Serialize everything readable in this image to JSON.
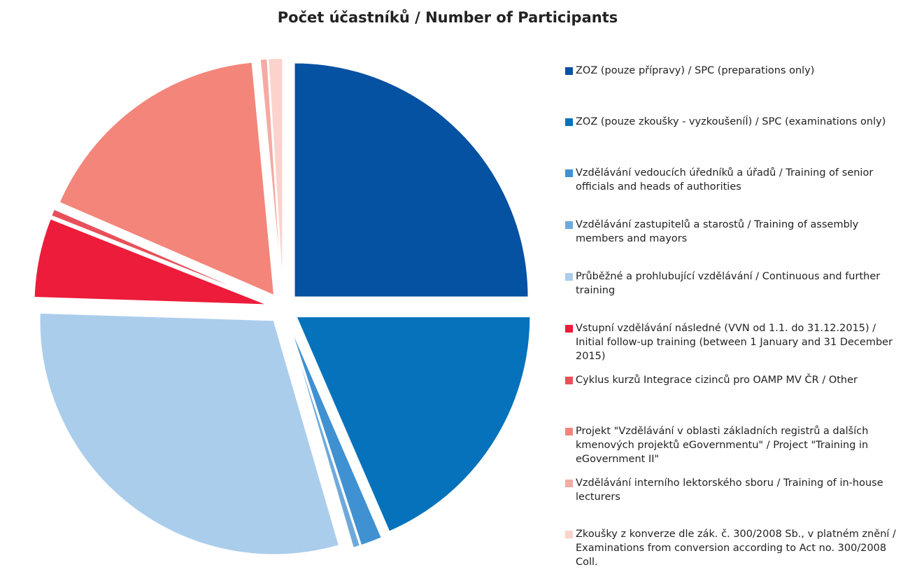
{
  "chart_data": {
    "type": "pie",
    "title": "Počet účastníků / Number of Participants",
    "categories": [
      "ZOZ (pouze přípravy) / SPC (preparations only)",
      "ZOZ (pouze zkoušky - vyzkoušeníÍ) / SPC (examinations only)",
      "Vzdělávání vedoucích úředníků a úřadů / Training of senior officials and heads of authorities",
      "Vzdělávání zastupitelů a starostů / Training of assembly members and mayors",
      "Průběžné a prohlubující vzdělávání  / Continuous and further training",
      "Vstupní vzdělávání následné (VVN od 1.1. do 31.12.2015) / Initial follow-up training (between 1 January and 31 December 2015)",
      "Cyklus kurzů Integrace cizinců pro OAMP MV ČR  / Other",
      "Projekt \"Vzdělávání v oblasti základních registrů a dalších kmenových projektů eGovernmentu\" / Project \"Training in eGovernment II\"",
      "Vzdělávání interního lektorského sboru / Training of in-house lecturers",
      "Zkoušky z konverze dle zák. č. 300/2008 Sb., v platném znění / Examinations from conversion according to Act no. 300/2008 Coll."
    ],
    "values": [
      25,
      18.5,
      1.5,
      0.5,
      30,
      5.5,
      0.5,
      17,
      0.5,
      1
    ],
    "colors": [
      "#0551a2",
      "#0572bb",
      "#3f91d2",
      "#6fa9dc",
      "#abcdec",
      "#ec1c3a",
      "#e8505a",
      "#f3857a",
      "#f5aaa2",
      "#fbd3cc"
    ],
    "legend": "right"
  }
}
